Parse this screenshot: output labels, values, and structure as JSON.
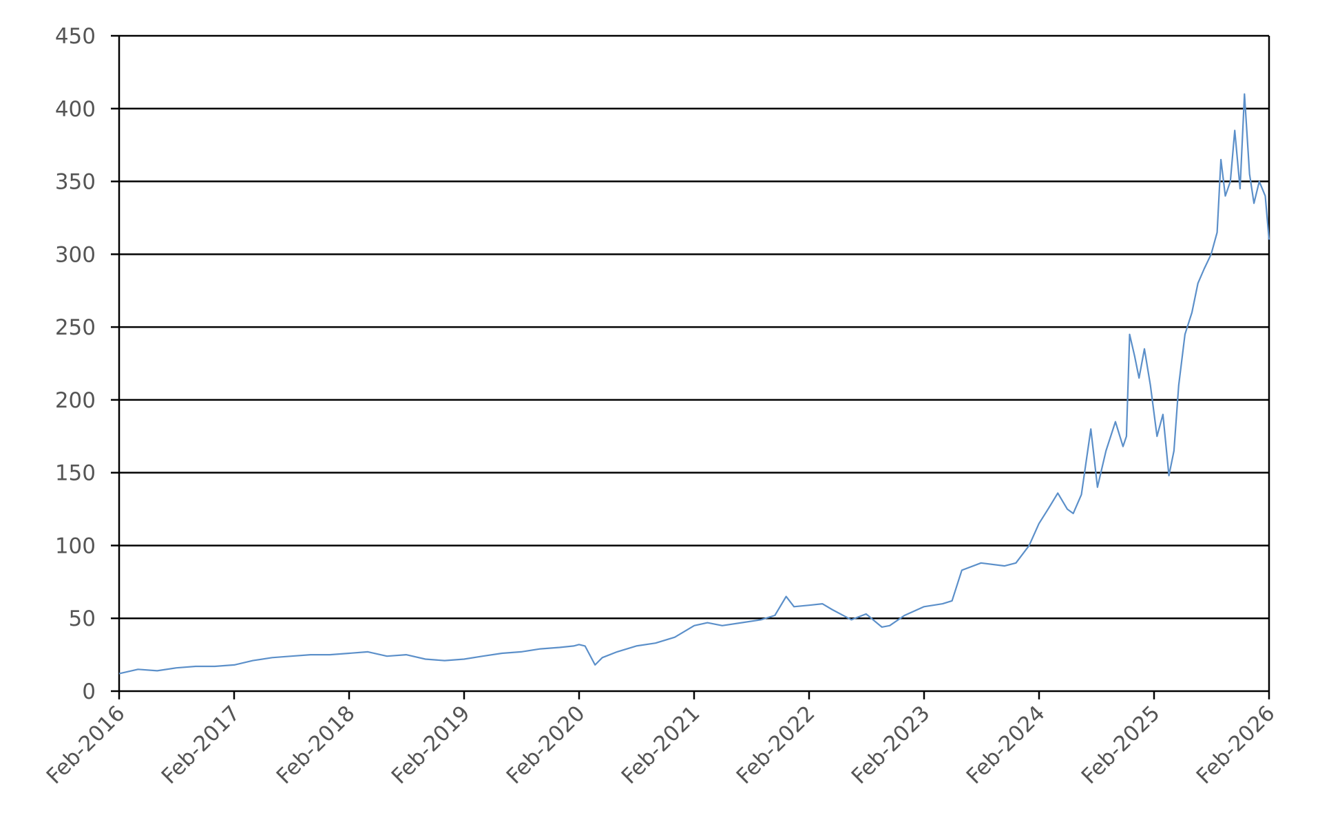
{
  "chart_data": {
    "type": "line",
    "title": "",
    "xlabel": "",
    "ylabel": "",
    "ylim": [
      0,
      450
    ],
    "y_ticks": [
      0,
      50,
      100,
      150,
      200,
      250,
      300,
      350,
      400,
      450
    ],
    "xlim": [
      "2016-02-01",
      "2026-02-01"
    ],
    "x_ticks": [
      "Feb-2016",
      "Feb-2017",
      "Feb-2018",
      "Feb-2019",
      "Feb-2020",
      "Feb-2021",
      "Feb-2022",
      "Feb-2023",
      "Feb-2024",
      "Feb-2025",
      "Feb-2026"
    ],
    "grid": true,
    "legend": "none",
    "series": [
      {
        "color": "#5b8fc9",
        "x": [
          "2016-02-01",
          "2016-04-01",
          "2016-06-01",
          "2016-08-01",
          "2016-10-01",
          "2016-12-01",
          "2017-02-01",
          "2017-04-01",
          "2017-06-01",
          "2017-08-01",
          "2017-10-01",
          "2017-12-01",
          "2018-02-01",
          "2018-04-01",
          "2018-06-01",
          "2018-08-01",
          "2018-10-01",
          "2018-12-01",
          "2019-02-01",
          "2019-04-01",
          "2019-06-01",
          "2019-08-01",
          "2019-10-01",
          "2019-12-01",
          "2020-01-15",
          "2020-02-01",
          "2020-02-20",
          "2020-03-23",
          "2020-04-15",
          "2020-06-01",
          "2020-08-01",
          "2020-10-01",
          "2020-12-01",
          "2021-02-01",
          "2021-03-15",
          "2021-05-01",
          "2021-07-01",
          "2021-09-01",
          "2021-10-15",
          "2021-11-20",
          "2021-12-15",
          "2022-02-01",
          "2022-03-15",
          "2022-04-15",
          "2022-06-15",
          "2022-08-01",
          "2022-09-20",
          "2022-10-15",
          "2022-12-01",
          "2023-02-01",
          "2023-04-01",
          "2023-05-01",
          "2023-06-01",
          "2023-08-01",
          "2023-10-15",
          "2023-11-20",
          "2024-01-01",
          "2024-02-01",
          "2024-03-01",
          "2024-04-01",
          "2024-05-01",
          "2024-05-20",
          "2024-06-15",
          "2024-07-15",
          "2024-08-05",
          "2024-09-01",
          "2024-10-01",
          "2024-10-25",
          "2024-11-05",
          "2024-11-15",
          "2024-12-01",
          "2024-12-15",
          "2025-01-01",
          "2025-01-20",
          "2025-02-10",
          "2025-03-01",
          "2025-03-20",
          "2025-04-05",
          "2025-04-20",
          "2025-05-10",
          "2025-06-01",
          "2025-06-20",
          "2025-07-10",
          "2025-08-01",
          "2025-08-20",
          "2025-09-01",
          "2025-09-15",
          "2025-10-01",
          "2025-10-15",
          "2025-11-01",
          "2025-11-15",
          "2025-12-01",
          "2025-12-15",
          "2026-01-01",
          "2026-01-20",
          "2026-02-01"
        ],
        "values": [
          12,
          15,
          14,
          16,
          17,
          17,
          18,
          21,
          23,
          24,
          25,
          25,
          26,
          27,
          24,
          25,
          22,
          21,
          22,
          24,
          26,
          27,
          29,
          30,
          31,
          32,
          31,
          18,
          23,
          27,
          31,
          33,
          37,
          45,
          47,
          45,
          47,
          49,
          52,
          65,
          58,
          59,
          60,
          56,
          49,
          53,
          44,
          45,
          52,
          58,
          60,
          62,
          83,
          88,
          86,
          88,
          100,
          115,
          125,
          136,
          125,
          122,
          135,
          180,
          140,
          165,
          185,
          168,
          175,
          245,
          230,
          215,
          235,
          210,
          175,
          190,
          148,
          165,
          210,
          245,
          260,
          280,
          290,
          300,
          315,
          365,
          340,
          350,
          385,
          345,
          410,
          355,
          335,
          350,
          340,
          310
        ]
      }
    ]
  }
}
